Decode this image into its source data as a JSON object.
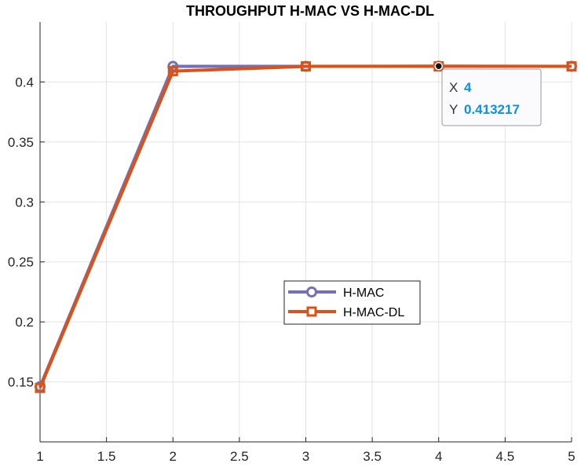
{
  "chart_data": {
    "type": "line",
    "title": "THROUGHPUT  H-MAC  VS  H-MAC-DL",
    "xlabel": "",
    "ylabel": "",
    "x": [
      1,
      2,
      3,
      4,
      5
    ],
    "xlim": [
      1,
      5
    ],
    "ylim": [
      0.1,
      0.45
    ],
    "xticks": [
      "1",
      "1.5",
      "2",
      "2.5",
      "3",
      "3.5",
      "4",
      "4.5",
      "5"
    ],
    "yticks": [
      "0.15",
      "0.2",
      "0.25",
      "0.3",
      "0.35",
      "0.4"
    ],
    "grid": true,
    "legend_position": "center",
    "series": [
      {
        "name": "H-MAC",
        "values": [
          0.146,
          0.413,
          0.413,
          0.413217,
          0.413
        ],
        "color": "#7570b3",
        "marker": "circle"
      },
      {
        "name": "H-MAC-DL",
        "values": [
          0.145,
          0.409,
          0.413,
          0.413,
          0.413
        ],
        "color": "#d95319",
        "marker": "square"
      }
    ],
    "datatip": {
      "x_key": "X",
      "x_value": "4",
      "y_key": "Y",
      "y_value": "0.413217",
      "value_color": "#0a8ff2"
    }
  }
}
